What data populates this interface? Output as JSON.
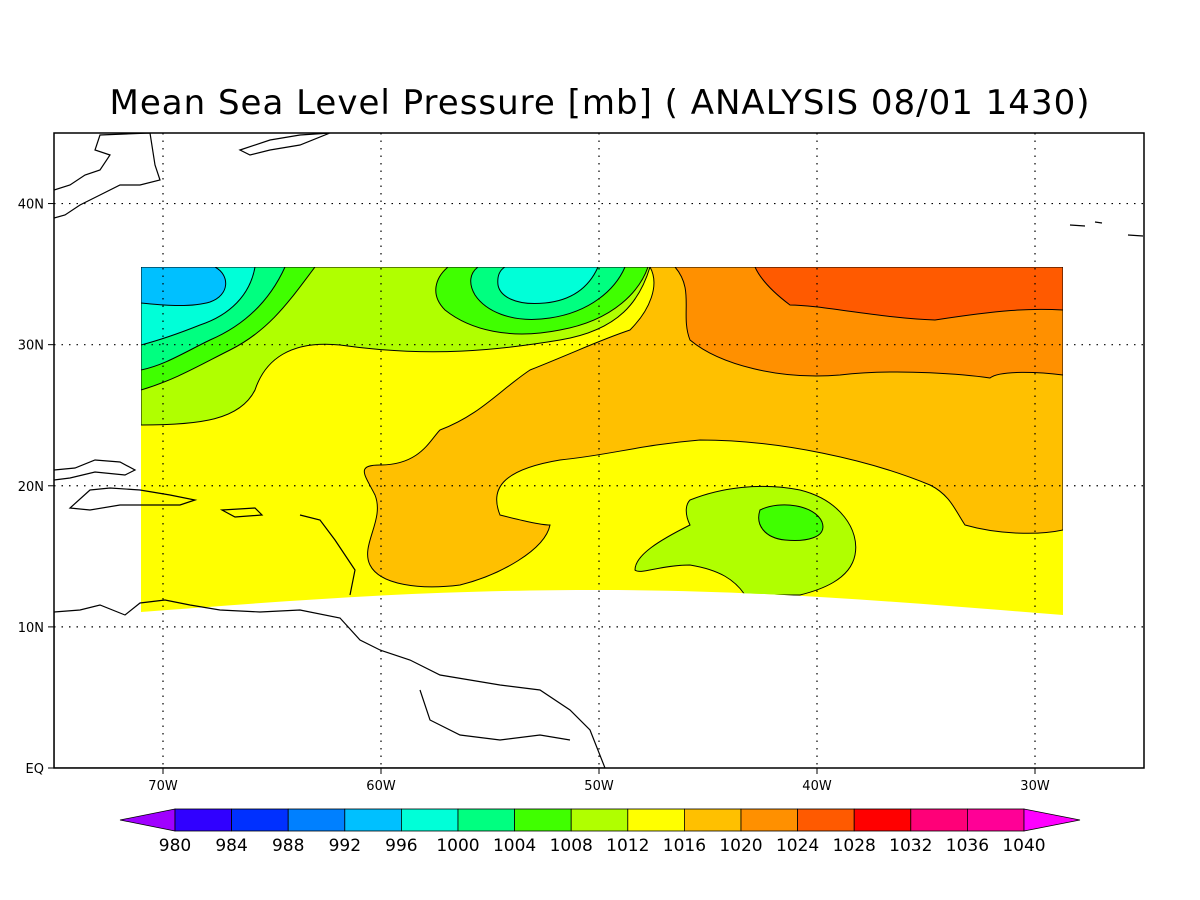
{
  "title": "Mean Sea Level Pressure [mb] ( ANALYSIS 08/01 1430)",
  "axes": {
    "lon_ticks": [
      {
        "value": -70,
        "label": "70W"
      },
      {
        "value": -60,
        "label": "60W"
      },
      {
        "value": -50,
        "label": "50W"
      },
      {
        "value": -40,
        "label": "40W"
      },
      {
        "value": -30,
        "label": "30W"
      }
    ],
    "lat_ticks": [
      {
        "value": 0,
        "label": "EQ"
      },
      {
        "value": 10,
        "label": "10N"
      },
      {
        "value": 20,
        "label": "20N"
      },
      {
        "value": 30,
        "label": "30N"
      },
      {
        "value": 40,
        "label": "40N"
      }
    ],
    "lon_range": [
      -75,
      -25
    ],
    "lat_range": [
      0,
      45
    ],
    "grid": "dotted"
  },
  "colorbar": {
    "levels": [
      "980",
      "984",
      "988",
      "992",
      "996",
      "1000",
      "1004",
      "1008",
      "1012",
      "1016",
      "1020",
      "1024",
      "1028",
      "1032",
      "1036",
      "1040"
    ],
    "colors": [
      "#a000ff",
      "#3000ff",
      "#0030ff",
      "#0080ff",
      "#00c0ff",
      "#00ffd8",
      "#00ff80",
      "#40ff00",
      "#b0ff00",
      "#ffff00",
      "#ffc000",
      "#ff9000",
      "#ff5a00",
      "#ff0000",
      "#ff0078",
      "#ff0096",
      "#ff00ff"
    ]
  },
  "chart_data": {
    "type": "heatmap",
    "title": "Mean Sea Level Pressure [mb] ( ANALYSIS 08/01 1430)",
    "xlabel": "",
    "ylabel": "",
    "xlim": [
      -75,
      -25
    ],
    "ylim": [
      0,
      45
    ],
    "units": "mb",
    "domain_lon": [
      -71,
      -29
    ],
    "domain_lat": [
      11,
      35.5
    ],
    "levels": [
      980,
      984,
      988,
      992,
      996,
      1000,
      1004,
      1008,
      1012,
      1016,
      1020,
      1024,
      1028,
      1032,
      1036,
      1040
    ],
    "features": [
      {
        "kind": "low",
        "lon": -67.5,
        "lat": 34,
        "value": 994
      },
      {
        "kind": "low",
        "lon": -53,
        "lat": 34,
        "value": 999
      },
      {
        "kind": "high",
        "lon": -35,
        "lat": 34,
        "value": 1026
      },
      {
        "kind": "weak-low",
        "lon": -41.5,
        "lat": 17.5,
        "value": 1007
      }
    ]
  }
}
